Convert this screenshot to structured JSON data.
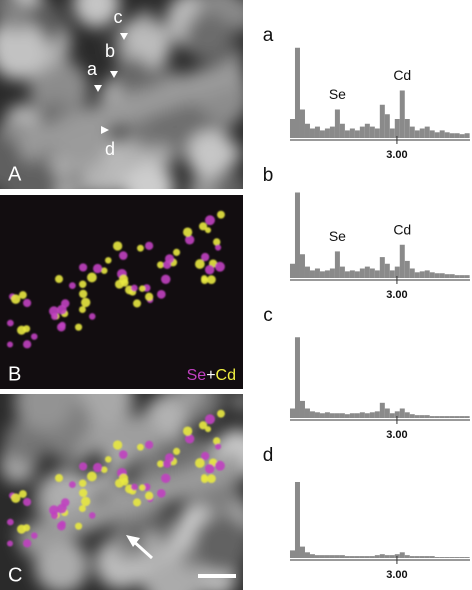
{
  "figure": {
    "panels": [
      {
        "label": "A",
        "kind": "gray"
      },
      {
        "label": "B",
        "kind": "map"
      },
      {
        "label": "C",
        "kind": "overlay"
      }
    ],
    "points": [
      "a",
      "b",
      "c",
      "d"
    ],
    "map_legend": [
      {
        "text": "Se",
        "color": "#c040c0"
      },
      {
        "text": "+",
        "color": "#ffffff"
      },
      {
        "text": "Cd",
        "color": "#f0f040"
      }
    ]
  },
  "chart_data": [
    {
      "type": "bar",
      "label": "a",
      "color": "#8a8a8a",
      "x": [
        0.07,
        0.21,
        0.35,
        0.49,
        0.63,
        0.77,
        0.91,
        1.05,
        1.19,
        1.33,
        1.47,
        1.61,
        1.75,
        1.89,
        2.03,
        2.17,
        2.31,
        2.45,
        2.59,
        2.73,
        2.87,
        3.01,
        3.15,
        3.29,
        3.43,
        3.57,
        3.71,
        3.85,
        3.99,
        4.13,
        4.27,
        4.41,
        4.55,
        4.69,
        4.83,
        4.97
      ],
      "values": [
        20,
        95,
        30,
        15,
        10,
        12,
        8,
        10,
        12,
        30,
        15,
        8,
        10,
        8,
        12,
        15,
        12,
        10,
        35,
        25,
        10,
        20,
        50,
        20,
        12,
        8,
        10,
        12,
        8,
        6,
        8,
        6,
        5,
        5,
        4,
        5
      ],
      "xlim": [
        0,
        5.05
      ],
      "ylim": [
        0,
        100
      ],
      "xticks": [
        {
          "value": 3,
          "label": "3.00"
        }
      ],
      "annotations": [
        {
          "text": "Se",
          "x": 1.33
        },
        {
          "text": "Cd",
          "x": 3.15
        }
      ]
    },
    {
      "type": "bar",
      "label": "b",
      "color": "#8a8a8a",
      "x": [
        0.07,
        0.21,
        0.35,
        0.49,
        0.63,
        0.77,
        0.91,
        1.05,
        1.19,
        1.33,
        1.47,
        1.61,
        1.75,
        1.89,
        2.03,
        2.17,
        2.31,
        2.45,
        2.59,
        2.73,
        2.87,
        3.01,
        3.15,
        3.29,
        3.43,
        3.57,
        3.71,
        3.85,
        3.99,
        4.13,
        4.27,
        4.41,
        4.55,
        4.69,
        4.83,
        4.97
      ],
      "values": [
        15,
        90,
        25,
        12,
        8,
        10,
        7,
        8,
        10,
        28,
        12,
        7,
        8,
        7,
        10,
        12,
        10,
        8,
        22,
        15,
        8,
        12,
        35,
        18,
        10,
        6,
        7,
        8,
        6,
        5,
        5,
        4,
        4,
        3,
        3,
        3
      ],
      "xlim": [
        0,
        5.05
      ],
      "ylim": [
        0,
        100
      ],
      "xticks": [
        {
          "value": 3,
          "label": "3.00"
        }
      ],
      "annotations": [
        {
          "text": "Se",
          "x": 1.33
        },
        {
          "text": "Cd",
          "x": 3.15
        }
      ]
    },
    {
      "type": "bar",
      "label": "c",
      "color": "#8a8a8a",
      "x": [
        0.07,
        0.21,
        0.35,
        0.49,
        0.63,
        0.77,
        0.91,
        1.05,
        1.19,
        1.33,
        1.47,
        1.61,
        1.75,
        1.89,
        2.03,
        2.17,
        2.31,
        2.45,
        2.59,
        2.73,
        2.87,
        3.01,
        3.15,
        3.29,
        3.43,
        3.57,
        3.71,
        3.85,
        3.99,
        4.13,
        4.27,
        4.41,
        4.55,
        4.69,
        4.83,
        4.97
      ],
      "values": [
        10,
        85,
        18,
        10,
        7,
        6,
        5,
        6,
        5,
        5,
        5,
        4,
        5,
        5,
        6,
        5,
        6,
        7,
        16,
        10,
        5,
        7,
        10,
        6,
        4,
        3,
        3,
        3,
        2,
        2,
        2,
        2,
        2,
        2,
        2,
        2
      ],
      "xlim": [
        0,
        5.05
      ],
      "ylim": [
        0,
        100
      ],
      "xticks": [
        {
          "value": 3,
          "label": "3.00"
        }
      ]
    },
    {
      "type": "bar",
      "label": "d",
      "color": "#8a8a8a",
      "x": [
        0.07,
        0.21,
        0.35,
        0.49,
        0.63,
        0.77,
        0.91,
        1.05,
        1.19,
        1.33,
        1.47,
        1.61,
        1.75,
        1.89,
        2.03,
        2.17,
        2.31,
        2.45,
        2.59,
        2.73,
        2.87,
        3.01,
        3.15,
        3.29,
        3.43,
        3.57,
        3.71,
        3.85,
        3.99,
        4.13,
        4.27,
        4.41,
        4.55,
        4.69,
        4.83,
        4.97
      ],
      "values": [
        8,
        80,
        12,
        6,
        4,
        3,
        3,
        3,
        3,
        3,
        3,
        2,
        2,
        2,
        2,
        2,
        2,
        3,
        4,
        3,
        3,
        4,
        6,
        3,
        2,
        2,
        2,
        2,
        2,
        1,
        1,
        1,
        1,
        1,
        1,
        1
      ],
      "xlim": [
        0,
        5.05
      ],
      "ylim": [
        0,
        100
      ],
      "xticks": [
        {
          "value": 3,
          "label": "3.00"
        }
      ]
    }
  ]
}
